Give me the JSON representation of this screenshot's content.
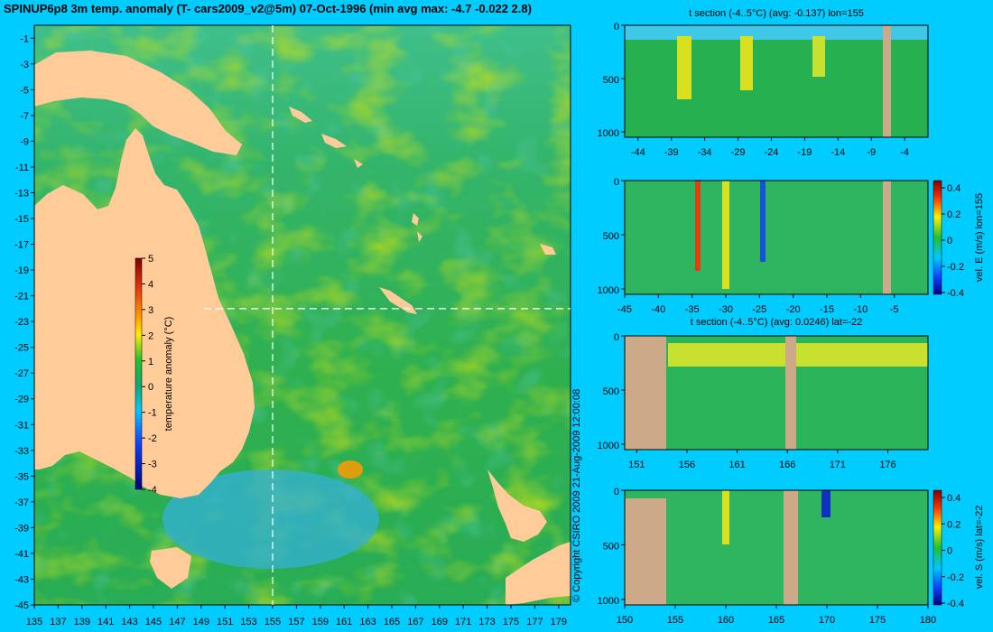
{
  "title": "SPINUP6p8 3m temp. anomaly (T- cars2009_v2@5m) 07-Oct-1996 (min avg max: -4.7 -0.022 2.8)",
  "colors": {
    "background": "#00ccff",
    "land": "#ffcc99",
    "section_land": "#cca988",
    "ocean": "#22aa55",
    "guide": "#ffffff"
  },
  "map": {
    "x_ticks": [
      "135",
      "137",
      "139",
      "141",
      "143",
      "145",
      "147",
      "149",
      "151",
      "153",
      "155",
      "157",
      "159",
      "161",
      "163",
      "165",
      "167",
      "169",
      "171",
      "173",
      "175",
      "177",
      "179"
    ],
    "y_ticks": [
      "-1",
      "-3",
      "-5",
      "-7",
      "-9",
      "-11",
      "-13",
      "-15",
      "-17",
      "-19",
      "-21",
      "-23",
      "-25",
      "-27",
      "-29",
      "-31",
      "-33",
      "-35",
      "-37",
      "-39",
      "-41",
      "-43",
      "-45"
    ],
    "guide_lon": "155",
    "guide_lat": "-22",
    "colorbar": {
      "label": "temperature anomaly (°C)",
      "ticks": [
        "5",
        "4",
        "3",
        "2",
        "1",
        "0",
        "-1",
        "-2",
        "-3",
        "-4"
      ]
    }
  },
  "copyright": "© Copyright CSIRO 2009   21-Aug-2009 12:00:08",
  "panels": [
    {
      "title": "t section (-4..5°C) (avg: -0.137) lon=155",
      "x_ticks": [
        "-44",
        "-39",
        "-34",
        "-29",
        "-24",
        "-19",
        "-14",
        "-9",
        "-4"
      ],
      "y_ticks": [
        "0",
        "500",
        "1000"
      ],
      "colorbar": null
    },
    {
      "title": "",
      "x_ticks": [
        "-45",
        "-40",
        "-35",
        "-30",
        "-25",
        "-20",
        "-15",
        "-10",
        "-5"
      ],
      "y_ticks": [
        "0",
        "500",
        "1000"
      ],
      "colorbar": {
        "label": "vel. E (m/s) lon=155",
        "ticks": [
          "0.4",
          "0.2",
          "0",
          "-0.2",
          "-0.4"
        ]
      }
    },
    {
      "title": "t section (-4..5°C) (avg: 0.0246) lat=-22",
      "x_ticks": [
        "151",
        "156",
        "161",
        "166",
        "171",
        "176"
      ],
      "y_ticks": [
        "0",
        "500",
        "1000"
      ],
      "colorbar": null
    },
    {
      "title": "",
      "x_ticks": [
        "150",
        "155",
        "160",
        "165",
        "170",
        "175",
        "180"
      ],
      "y_ticks": [
        "0",
        "500",
        "1000"
      ],
      "colorbar": {
        "label": "vel. S (m/s) lat=-22",
        "ticks": [
          "0.4",
          "0.2",
          "0",
          "-0.2",
          "-0.4"
        ]
      }
    }
  ]
}
